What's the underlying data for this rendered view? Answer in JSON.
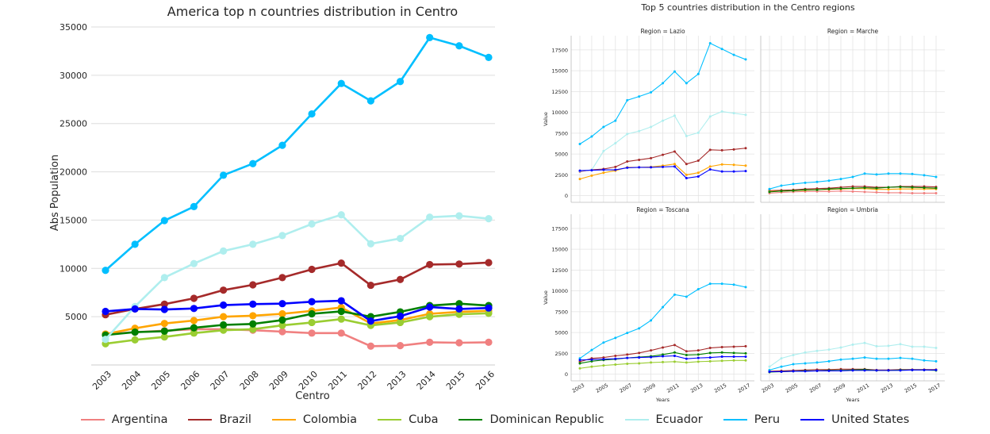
{
  "colors": {
    "Argentina": "#f08080",
    "Brazil": "#a52a2a",
    "Colombia": "#ffa500",
    "Cuba": "#9acd32",
    "Dominican Republic": "#008000",
    "Ecuador": "#afeeee",
    "Peru": "#00bfff",
    "United States": "#0000ff"
  },
  "legend": [
    "Argentina",
    "Brazil",
    "Colombia",
    "Cuba",
    "Dominican Republic",
    "Ecuador",
    "Peru",
    "United States"
  ],
  "chart_data": [
    {
      "type": "line",
      "title": "America top n countries distribution in Centro",
      "xlabel": "Centro",
      "ylabel": "Abs Population",
      "x": [
        2003,
        2004,
        2005,
        2006,
        2007,
        2008,
        2009,
        2010,
        2011,
        2012,
        2013,
        2014,
        2015,
        2016
      ],
      "ylim": [
        0,
        35000
      ],
      "yticks": [
        5000,
        10000,
        15000,
        20000,
        25000,
        30000,
        35000
      ],
      "grid": "horizontal",
      "series": [
        {
          "name": "Argentina",
          "values": [
            3200,
            3400,
            3550,
            3700,
            3700,
            3600,
            3450,
            3300,
            3300,
            1950,
            2000,
            2350,
            2300,
            2350
          ]
        },
        {
          "name": "Brazil",
          "values": [
            5200,
            5800,
            6300,
            6900,
            7750,
            8300,
            9050,
            9900,
            10550,
            8250,
            8850,
            10400,
            10450,
            10600
          ]
        },
        {
          "name": "Colombia",
          "values": [
            3200,
            3800,
            4300,
            4600,
            5000,
            5100,
            5300,
            5600,
            5950,
            4300,
            4650,
            5300,
            5500,
            5600
          ]
        },
        {
          "name": "Cuba",
          "values": [
            2200,
            2600,
            2900,
            3300,
            3600,
            3700,
            4100,
            4400,
            4750,
            4100,
            4400,
            5000,
            5250,
            5350
          ]
        },
        {
          "name": "Dominican Republic",
          "values": [
            3100,
            3400,
            3500,
            3850,
            4150,
            4250,
            4650,
            5300,
            5550,
            5000,
            5500,
            6150,
            6350,
            6150
          ]
        },
        {
          "name": "Ecuador",
          "values": [
            2650,
            6050,
            9050,
            10500,
            11800,
            12500,
            13400,
            14600,
            15550,
            12550,
            13100,
            15300,
            15450,
            15150
          ]
        },
        {
          "name": "Peru",
          "values": [
            9800,
            12500,
            14950,
            16400,
            19650,
            20850,
            22750,
            26000,
            29150,
            27350,
            29350,
            33900,
            33050,
            31850
          ]
        },
        {
          "name": "United States",
          "values": [
            5550,
            5800,
            5750,
            5850,
            6200,
            6300,
            6350,
            6550,
            6650,
            4550,
            5050,
            6000,
            5800,
            5900
          ]
        }
      ]
    },
    {
      "type": "line",
      "title": "Top 5 countries distribution in the Centro regions",
      "xlabel": "Years",
      "ylabel": "Value",
      "x": [
        2003,
        2004,
        2005,
        2006,
        2007,
        2008,
        2009,
        2010,
        2011,
        2012,
        2013,
        2014,
        2015,
        2016,
        2017
      ],
      "xticks": [
        2003,
        2005,
        2007,
        2009,
        2011,
        2013,
        2015,
        2017
      ],
      "ylim": [
        -800,
        19200
      ],
      "yticks": [
        0,
        2500,
        5000,
        7500,
        10000,
        12500,
        15000,
        17500
      ],
      "panels": [
        {
          "title": "Region = Lazio",
          "series": [
            {
              "name": "Brazil",
              "values": [
                2900,
                3100,
                3200,
                3450,
                4100,
                4300,
                4500,
                4900,
                5300,
                3800,
                4200,
                5500,
                5450,
                5550,
                5700
              ]
            },
            {
              "name": "Colombia",
              "values": [
                2000,
                2400,
                2750,
                3000,
                3400,
                3400,
                3450,
                3600,
                3800,
                2500,
                2750,
                3500,
                3750,
                3700,
                3600
              ]
            },
            {
              "name": "Ecuador",
              "values": [
                2950,
                3100,
                5350,
                6300,
                7400,
                7750,
                8250,
                9000,
                9600,
                7150,
                7550,
                9500,
                10100,
                9900,
                9700
              ]
            },
            {
              "name": "Peru",
              "values": [
                6200,
                7100,
                8250,
                9000,
                11450,
                11900,
                12400,
                13500,
                14900,
                13500,
                14600,
                18300,
                17600,
                16900,
                16350
              ]
            },
            {
              "name": "United States",
              "values": [
                3000,
                3050,
                3100,
                3100,
                3350,
                3400,
                3400,
                3450,
                3500,
                2100,
                2300,
                3150,
                2900,
                2900,
                2950
              ]
            }
          ]
        },
        {
          "title": "Region = Marche",
          "series": [
            {
              "name": "Argentina",
              "values": [
                300,
                400,
                450,
                500,
                500,
                500,
                550,
                500,
                450,
                400,
                350,
                350,
                300,
                300,
                300
              ]
            },
            {
              "name": "Brazil",
              "values": [
                600,
                650,
                700,
                800,
                850,
                900,
                1000,
                1100,
                1100,
                1000,
                1000,
                1100,
                1100,
                1100,
                1050
              ]
            },
            {
              "name": "Colombia",
              "values": [
                500,
                550,
                600,
                650,
                700,
                750,
                800,
                850,
                850,
                750,
                750,
                800,
                800,
                800,
                800
              ]
            },
            {
              "name": "Dominican Republic",
              "values": [
                450,
                550,
                600,
                700,
                700,
                800,
                850,
                900,
                950,
                900,
                1000,
                1050,
                1000,
                950,
                900
              ]
            },
            {
              "name": "Peru",
              "values": [
                800,
                1200,
                1400,
                1550,
                1650,
                1800,
                2000,
                2250,
                2650,
                2550,
                2650,
                2650,
                2600,
                2450,
                2250
              ]
            }
          ]
        },
        {
          "title": "Region = Toscana",
          "series": [
            {
              "name": "Brazil",
              "values": [
                1500,
                1900,
                2000,
                2200,
                2350,
                2550,
                2850,
                3200,
                3500,
                2750,
                2850,
                3150,
                3250,
                3300,
                3350
              ]
            },
            {
              "name": "Cuba",
              "values": [
                700,
                900,
                1050,
                1150,
                1250,
                1300,
                1400,
                1450,
                1500,
                1400,
                1500,
                1550,
                1600,
                1650,
                1650
              ]
            },
            {
              "name": "Dominican Republic",
              "values": [
                1300,
                1550,
                1700,
                1800,
                1950,
                2050,
                2150,
                2350,
                2600,
                2300,
                2350,
                2550,
                2600,
                2550,
                2500
              ]
            },
            {
              "name": "Peru",
              "values": [
                1900,
                2900,
                3800,
                4350,
                4950,
                5500,
                6450,
                8050,
                9550,
                9300,
                10200,
                10850,
                10850,
                10750,
                10450
              ]
            },
            {
              "name": "United States",
              "values": [
                1700,
                1750,
                1800,
                1850,
                1950,
                2000,
                2050,
                2150,
                2200,
                1850,
                1950,
                2000,
                2100,
                2100,
                2100
              ]
            }
          ]
        },
        {
          "title": "Region = Umbria",
          "series": [
            {
              "name": "Brazil",
              "values": [
                350,
                400,
                450,
                500,
                550,
                550,
                600,
                600,
                600,
                500,
                500,
                550,
                550,
                550,
                550
              ]
            },
            {
              "name": "Dominican Republic",
              "values": [
                250,
                300,
                350,
                400,
                400,
                450,
                450,
                500,
                550,
                450,
                450,
                500,
                500,
                500,
                450
              ]
            },
            {
              "name": "Ecuador",
              "values": [
                900,
                1900,
                2300,
                2600,
                2800,
                2950,
                3200,
                3550,
                3750,
                3350,
                3400,
                3600,
                3300,
                3300,
                3150
              ]
            },
            {
              "name": "Peru",
              "values": [
                500,
                900,
                1200,
                1300,
                1400,
                1550,
                1750,
                1850,
                2000,
                1850,
                1850,
                1950,
                1850,
                1650,
                1550
              ]
            },
            {
              "name": "United States",
              "values": [
                300,
                300,
                350,
                350,
                400,
                400,
                400,
                450,
                450,
                450,
                450,
                450,
                500,
                500,
                500
              ]
            }
          ]
        }
      ]
    }
  ]
}
